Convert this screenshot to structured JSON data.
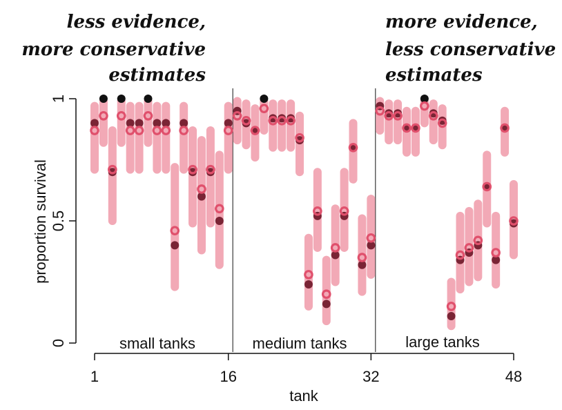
{
  "chart_data": {
    "type": "scatter",
    "xlabel": "tank",
    "ylabel": "proportion survival",
    "xlim": [
      1,
      48
    ],
    "ylim": [
      0,
      1
    ],
    "xticks": [
      "1",
      "16",
      "32",
      "48"
    ],
    "yticks": [
      "0",
      "0.5",
      "1"
    ],
    "group_dividers": [
      16.5,
      32.5
    ],
    "groups": [
      "small tanks",
      "medium tanks",
      "large tanks"
    ],
    "annotations": {
      "left": [
        "less evidence,",
        "more conservative",
        "estimates"
      ],
      "right": [
        "more evidence,",
        "less conservative",
        "estimates"
      ]
    },
    "colors": {
      "interval": "#f2a9b6",
      "estimate": "#e0506c",
      "observed": "#7a2435",
      "observed_saturated": "#111111",
      "axis": "#111111"
    },
    "series": [
      {
        "x": [
          1,
          2,
          3,
          4,
          5,
          6,
          7,
          8,
          9,
          10,
          11,
          12,
          13,
          14,
          15,
          16,
          17,
          18,
          19,
          20,
          21,
          22,
          23,
          24,
          25,
          26,
          27,
          28,
          29,
          30,
          31,
          32,
          33,
          34,
          35,
          36,
          37,
          38,
          39,
          40,
          41,
          42,
          43,
          44,
          45,
          46,
          47,
          48
        ],
        "observed": [
          0.9,
          1.0,
          0.7,
          1.0,
          0.9,
          0.9,
          1.0,
          0.9,
          0.9,
          0.4,
          0.9,
          0.7,
          0.6,
          0.7,
          0.5,
          0.9,
          0.95,
          0.9,
          0.87,
          1.0,
          0.92,
          0.92,
          0.92,
          0.83,
          0.24,
          0.52,
          0.16,
          0.36,
          0.52,
          0.8,
          0.32,
          0.4,
          0.97,
          0.94,
          0.94,
          0.88,
          0.88,
          1.0,
          0.94,
          0.91,
          0.11,
          0.34,
          0.37,
          0.4,
          0.64,
          0.34,
          0.88,
          0.49
        ],
        "estimate": [
          0.87,
          0.93,
          0.71,
          0.93,
          0.87,
          0.87,
          0.93,
          0.87,
          0.87,
          0.46,
          0.87,
          0.71,
          0.63,
          0.71,
          0.55,
          0.87,
          0.93,
          0.91,
          0.87,
          0.96,
          0.91,
          0.91,
          0.91,
          0.84,
          0.28,
          0.54,
          0.2,
          0.39,
          0.54,
          0.8,
          0.35,
          0.43,
          0.95,
          0.93,
          0.93,
          0.88,
          0.88,
          0.97,
          0.93,
          0.9,
          0.15,
          0.36,
          0.39,
          0.42,
          0.64,
          0.37,
          0.88,
          0.5
        ],
        "lower": [
          0.71,
          0.82,
          0.5,
          0.82,
          0.71,
          0.71,
          0.82,
          0.71,
          0.71,
          0.23,
          0.71,
          0.49,
          0.38,
          0.49,
          0.32,
          0.71,
          0.83,
          0.81,
          0.76,
          0.87,
          0.8,
          0.8,
          0.8,
          0.7,
          0.15,
          0.39,
          0.09,
          0.25,
          0.39,
          0.67,
          0.21,
          0.28,
          0.87,
          0.83,
          0.83,
          0.78,
          0.78,
          0.9,
          0.83,
          0.81,
          0.07,
          0.22,
          0.25,
          0.27,
          0.49,
          0.24,
          0.78,
          0.36
        ],
        "upper": [
          0.97,
          0.99,
          0.87,
          0.99,
          0.97,
          0.97,
          0.99,
          0.97,
          0.97,
          0.72,
          0.97,
          0.87,
          0.83,
          0.87,
          0.77,
          0.97,
          0.99,
          0.98,
          0.96,
          0.99,
          0.98,
          0.98,
          0.98,
          0.93,
          0.43,
          0.7,
          0.34,
          0.55,
          0.7,
          0.9,
          0.51,
          0.59,
          0.99,
          0.98,
          0.98,
          0.95,
          0.95,
          0.99,
          0.98,
          0.96,
          0.25,
          0.52,
          0.54,
          0.57,
          0.77,
          0.52,
          0.95,
          0.65
        ]
      }
    ]
  }
}
